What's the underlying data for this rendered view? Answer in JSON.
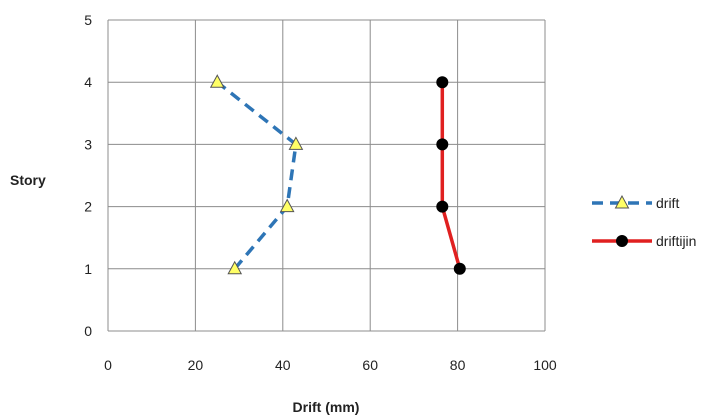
{
  "chart_data": {
    "type": "line",
    "xlabel": "Drift (mm)",
    "ylabel": "Story",
    "xlim": [
      0,
      100
    ],
    "ylim": [
      0,
      5
    ],
    "xticks": [
      0,
      20,
      40,
      60,
      80,
      100
    ],
    "yticks": [
      0,
      1,
      2,
      3,
      4,
      5
    ],
    "grid": true,
    "legend_position": "right",
    "series": [
      {
        "name": "drift",
        "color": "#2e75b6",
        "line_style": "dashed",
        "marker": "triangle",
        "marker_color": "#ffff66",
        "points": [
          {
            "x": 29,
            "y": 1
          },
          {
            "x": 41,
            "y": 2
          },
          {
            "x": 43,
            "y": 3
          },
          {
            "x": 25,
            "y": 4
          }
        ]
      },
      {
        "name": "driftijin",
        "color": "#e02020",
        "line_style": "solid",
        "marker": "circle",
        "marker_color": "#000000",
        "points": [
          {
            "x": 80.5,
            "y": 1
          },
          {
            "x": 76.5,
            "y": 2
          },
          {
            "x": 76.5,
            "y": 3
          },
          {
            "x": 76.5,
            "y": 4
          }
        ]
      }
    ]
  }
}
